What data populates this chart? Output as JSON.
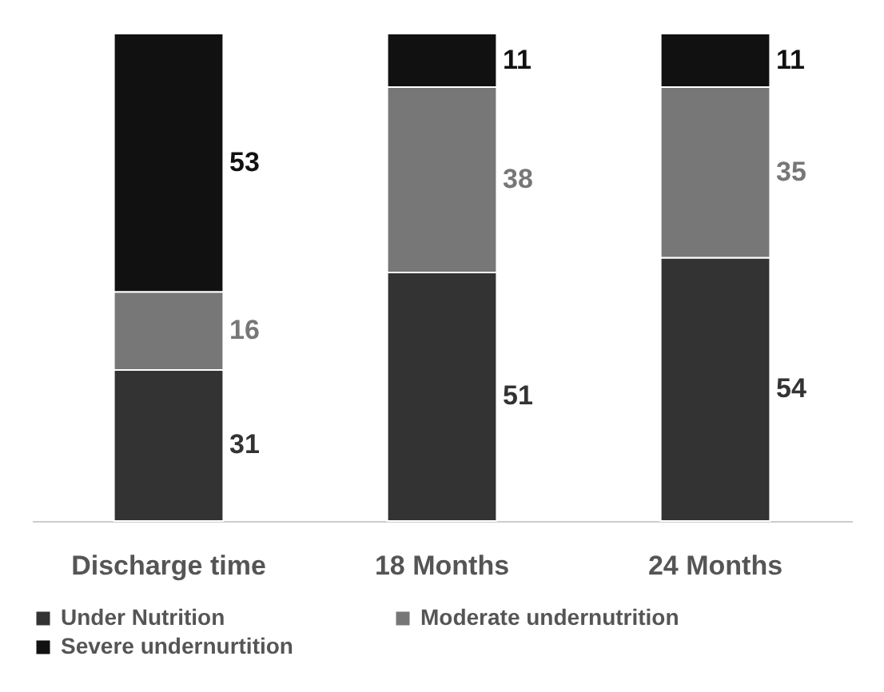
{
  "chart_data": {
    "type": "bar",
    "stacked": true,
    "categories": [
      "Discharge time",
      "18 Months",
      "24 Months"
    ],
    "series": [
      {
        "name": "Under Nutrition",
        "color": "#333333",
        "values": [
          31,
          51,
          54
        ]
      },
      {
        "name": "Moderate undernutrition",
        "color": "#777777",
        "values": [
          16,
          38,
          35
        ]
      },
      {
        "name": "Severe undernurtition",
        "color": "#111111",
        "values": [
          53,
          11,
          11
        ]
      }
    ],
    "data_labels": true,
    "legend": "bottom"
  }
}
